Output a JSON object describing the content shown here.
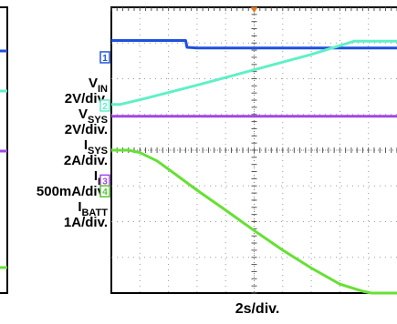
{
  "chart_data": {
    "type": "line",
    "title": "",
    "xlabel": "2s/div.",
    "ylabel": "",
    "divisions": {
      "x": 10,
      "y": 8
    },
    "grid": true,
    "ylim": [
      0,
      8
    ],
    "channel_labels": [
      {
        "base": "V",
        "sub": "IN"
      },
      {
        "base": "2V/div.",
        "sub": ""
      },
      {
        "base": "V",
        "sub": "SYS"
      },
      {
        "base": "2V/div.",
        "sub": ""
      },
      {
        "base": "I",
        "sub": "SYS"
      },
      {
        "base": "2A/div.",
        "sub": ""
      },
      {
        "base": "I",
        "sub": "IN"
      },
      {
        "base": "500mA/div.",
        "sub": ""
      },
      {
        "base": "I",
        "sub": "BATT"
      },
      {
        "base": "1A/div.",
        "sub": ""
      }
    ],
    "markers": [
      {
        "text": "1",
        "color": "#2457d6",
        "y_div": 6.6
      },
      {
        "text": "2",
        "color": "#5ff0c8",
        "y_div": 5.25
      },
      {
        "text": "3",
        "color": "#a048e6",
        "y_div": 3.15
      },
      {
        "text": "4",
        "color": "#5cc238",
        "y_div": 2.85
      }
    ],
    "series": [
      {
        "color": "#1f4fe0",
        "width": 3,
        "x": [
          0,
          2.6,
          2.65,
          3.0,
          10
        ],
        "y": [
          7.07,
          7.07,
          6.88,
          6.86,
          6.86
        ]
      },
      {
        "color": "#5ff0c8",
        "width": 3,
        "x": [
          0,
          0.3,
          1.2,
          3.0,
          5.0,
          7.0,
          8.5,
          10
        ],
        "y": [
          5.28,
          5.28,
          5.45,
          5.82,
          6.25,
          6.68,
          7.05,
          7.05
        ]
      },
      {
        "color": "#a048e6",
        "width": 3,
        "x": [
          0,
          10
        ],
        "y": [
          4.95,
          4.95
        ]
      },
      {
        "color": "#66e033",
        "width": 3,
        "x": [
          0,
          0.6,
          1.0,
          1.6,
          2.2,
          3.0,
          4.0,
          5.0,
          6.0,
          7.0,
          8.0,
          8.8,
          9.1,
          10
        ],
        "y": [
          4.0,
          4.0,
          3.93,
          3.7,
          3.35,
          2.88,
          2.32,
          1.75,
          1.2,
          0.7,
          0.25,
          0.05,
          0.0,
          0.0
        ]
      }
    ]
  }
}
